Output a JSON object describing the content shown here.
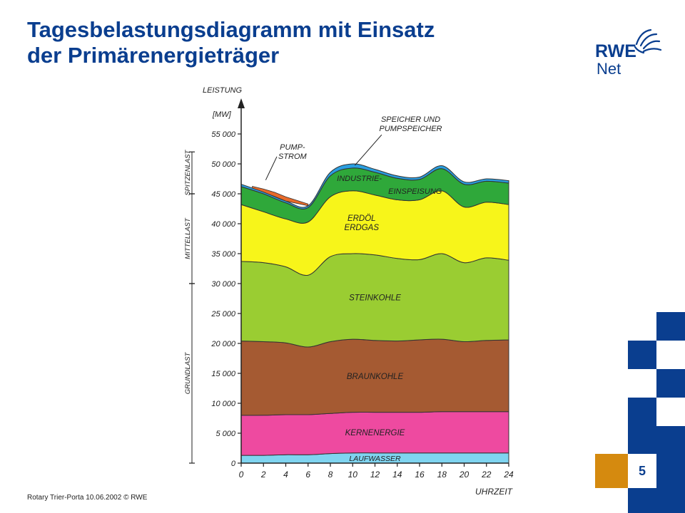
{
  "slide": {
    "title_line1": "Tagesbelastungsdiagramm mit Einsatz",
    "title_line2": "der Primärenergieträger",
    "footer": "Rotary Trier-Porta 10.06.2002 © RWE",
    "page_number": "5"
  },
  "logo": {
    "line1": "RWE",
    "line2": "Net",
    "icon": "rwe-hand-logo-icon"
  },
  "colors": {
    "title": "#0a3e8f",
    "accent_orange": "#d58a0f",
    "deco_blue": "#0a3e8f"
  },
  "chart_data": {
    "type": "area",
    "ylabel": "LEISTUNG",
    "yunit": "[MW]",
    "xlabel": "UHRZEIT",
    "ylim": [
      0,
      55000
    ],
    "xlim": [
      0,
      24
    ],
    "y_ticks": [
      "0",
      "5 000",
      "10 000",
      "15 000",
      "20 000",
      "25 000",
      "30 000",
      "35 000",
      "40 000",
      "45 000",
      "50 000",
      "55 000"
    ],
    "x_ticks": [
      "0",
      "2",
      "4",
      "6",
      "8",
      "10",
      "12",
      "14",
      "16",
      "18",
      "20",
      "22",
      "24"
    ],
    "x": [
      0,
      2,
      4,
      6,
      8,
      10,
      12,
      14,
      16,
      18,
      20,
      22,
      24
    ],
    "series": [
      {
        "name": "LAUFWASSER",
        "color": "#7fd4f0",
        "values": [
          1300,
          1300,
          1400,
          1400,
          1600,
          1700,
          1700,
          1700,
          1700,
          1700,
          1700,
          1700,
          1700
        ]
      },
      {
        "name": "KERNENERGIE",
        "color": "#ee4aa0",
        "values": [
          6700,
          6700,
          6700,
          6700,
          6700,
          6800,
          6800,
          6800,
          6800,
          6900,
          6900,
          6900,
          6900
        ]
      },
      {
        "name": "BRAUNKOHLE",
        "color": "#a55a32",
        "values": [
          12400,
          12300,
          12000,
          11300,
          12000,
          12200,
          12000,
          11900,
          12100,
          12100,
          11700,
          11900,
          12000
        ]
      },
      {
        "name": "STEINKOHLE",
        "color": "#9acd32",
        "values": [
          13300,
          13200,
          12700,
          12000,
          14200,
          14300,
          14300,
          13800,
          13400,
          14300,
          13200,
          13800,
          13300
        ]
      },
      {
        "name": "ERDÖL ERDGAS",
        "color": "#f7f51a",
        "values": [
          9500,
          8500,
          8000,
          8900,
          10000,
          10500,
          10000,
          9800,
          10000,
          10500,
          9300,
          9300,
          9300
        ]
      },
      {
        "name": "INDUSTRIE-EINSPEISUNG",
        "color": "#2fa83a",
        "values": [
          3000,
          3000,
          2700,
          2400,
          3500,
          3800,
          3800,
          3600,
          3400,
          3700,
          3800,
          3500,
          3600
        ]
      },
      {
        "name": "SPEICHER UND PUMPSPEICHER",
        "color": "#2a9ee0",
        "values": [
          400,
          300,
          300,
          300,
          600,
          700,
          500,
          400,
          400,
          500,
          400,
          400,
          400
        ]
      }
    ],
    "pumpstrom": {
      "name": "PUMP-STROM",
      "color": "#e86a2a",
      "x": [
        1,
        2,
        3,
        4,
        5,
        6
      ],
      "values": [
        300,
        500,
        700,
        700,
        500,
        300
      ]
    },
    "load_bands": [
      {
        "name": "SPITZENLAST",
        "from": 45000,
        "to": 52000
      },
      {
        "name": "MITTELLAST",
        "from": 30000,
        "to": 45000
      },
      {
        "name": "GRUNDLAST",
        "from": 0,
        "to": 30000
      }
    ]
  }
}
